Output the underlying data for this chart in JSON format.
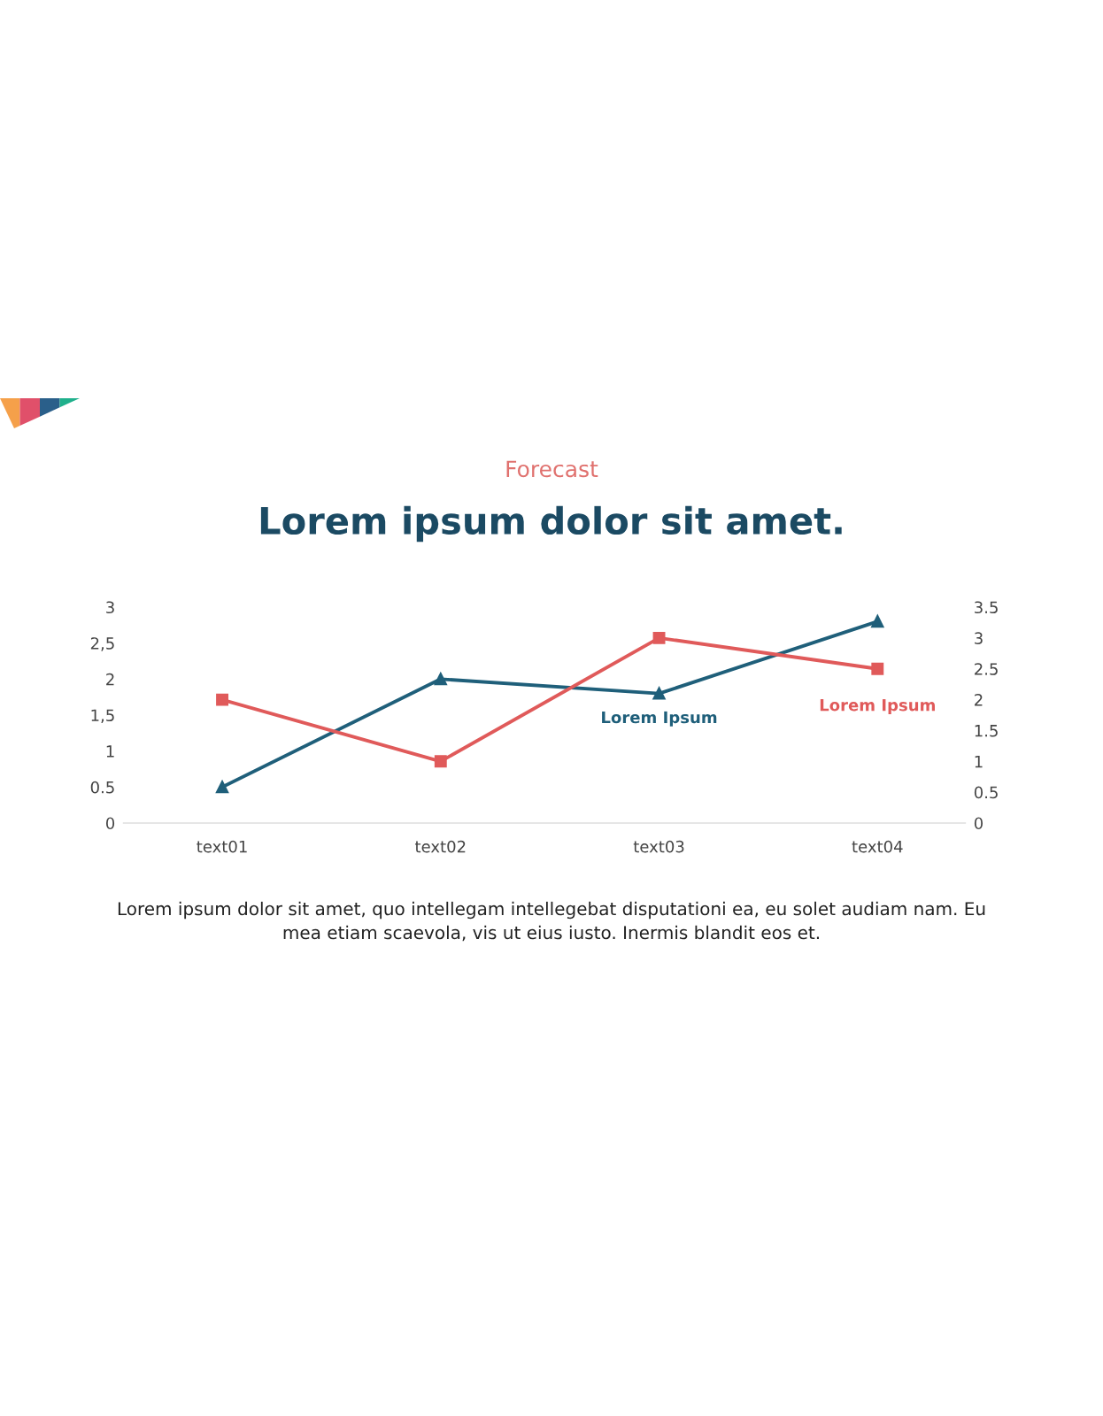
{
  "chart_data": {
    "type": "line",
    "subtitle": "Forecast",
    "title": "Lorem ipsum dolor sit amet.",
    "categories": [
      "text01",
      "text02",
      "text03",
      "text04"
    ],
    "series": [
      {
        "name": "Lorem Ipsum",
        "color": "#1f5f7a",
        "values": [
          0.5,
          2.0,
          1.8,
          2.8
        ],
        "marker": "triangle"
      },
      {
        "name": "Lorem Ipsum",
        "color": "#e05a5a",
        "values": [
          2.0,
          1.0,
          3.0,
          2.5
        ],
        "marker": "square",
        "axis": "y2"
      }
    ],
    "ylim": [
      0,
      3
    ],
    "yticks": [
      0,
      0.5,
      1,
      {
        "value": 1.5,
        "label": "1,5"
      },
      2,
      {
        "value": 2.5,
        "label": "2,5"
      },
      3
    ],
    "y2lim": [
      0,
      3.5
    ],
    "y2ticks": [
      0,
      0.5,
      1,
      1.5,
      2,
      2.5,
      3,
      3.5
    ],
    "grid": false,
    "legend": false,
    "line_style": "solid",
    "annotations": [
      "Lorem ipsum dolor sit amet, quo intellegam intellegebat disputationi ea, eu solet audiam nam. Eu\nmea etiam scaevola, vis ut eius iusto. Inermis blandit eos et."
    ]
  }
}
